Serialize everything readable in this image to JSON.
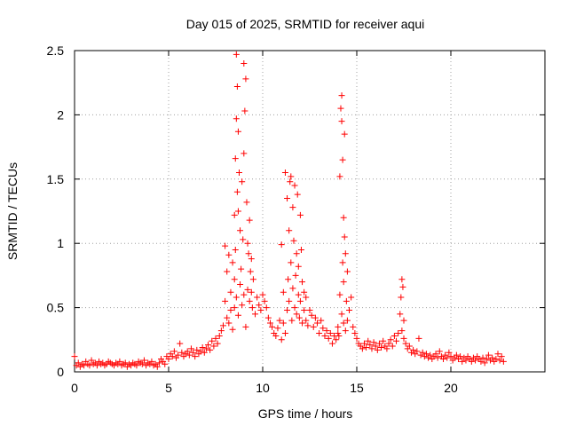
{
  "chart_data": {
    "type": "scatter",
    "title": "Day 015 of 2025, SRMTID for receiver aqui",
    "xlabel": "GPS time / hours",
    "ylabel": "SRMTID / TECUs",
    "xlim": [
      0,
      25
    ],
    "ylim": [
      0,
      2.5
    ],
    "xticks": [
      0,
      5,
      10,
      15,
      20
    ],
    "xtick_labels": [
      "0",
      "5",
      "10",
      "15",
      "20"
    ],
    "yticks": [
      0,
      0.5,
      1,
      1.5,
      2,
      2.5
    ],
    "ytick_labels": [
      "0",
      "0.5",
      "1",
      "1.5",
      "2",
      "2.5"
    ],
    "grid": true,
    "marker": "plus",
    "series": [
      {
        "name": "SRMTID",
        "color": "#ff0000",
        "x": [
          0.0,
          0.1,
          0.2,
          0.3,
          0.4,
          0.5,
          0.6,
          0.7,
          0.8,
          0.9,
          1.0,
          1.1,
          1.2,
          1.3,
          1.4,
          1.5,
          1.6,
          1.7,
          1.8,
          1.9,
          2.0,
          2.1,
          2.2,
          2.3,
          2.4,
          2.5,
          2.6,
          2.7,
          2.8,
          2.9,
          3.0,
          3.1,
          3.2,
          3.3,
          3.4,
          3.5,
          3.6,
          3.7,
          3.8,
          3.9,
          4.0,
          4.1,
          4.2,
          4.3,
          4.4,
          4.5,
          4.6,
          4.7,
          4.8,
          4.9,
          5.0,
          5.1,
          5.2,
          5.3,
          5.4,
          5.5,
          5.6,
          5.7,
          5.8,
          5.9,
          6.0,
          6.1,
          6.2,
          6.3,
          6.4,
          6.5,
          6.6,
          6.7,
          6.8,
          6.9,
          7.0,
          7.1,
          7.2,
          7.3,
          7.4,
          7.5,
          7.6,
          7.7,
          7.8,
          7.9,
          8.0,
          8.0,
          8.1,
          8.1,
          8.2,
          8.2,
          8.3,
          8.3,
          8.4,
          8.4,
          8.5,
          8.5,
          8.5,
          8.55,
          8.55,
          8.6,
          8.6,
          8.6,
          8.65,
          8.65,
          8.7,
          8.7,
          8.7,
          8.75,
          8.8,
          8.8,
          8.85,
          8.9,
          8.9,
          8.95,
          9.0,
          9.0,
          9.0,
          9.05,
          9.1,
          9.1,
          9.15,
          9.2,
          9.2,
          9.25,
          9.3,
          9.3,
          9.35,
          9.4,
          9.4,
          9.45,
          9.5,
          9.6,
          9.7,
          9.8,
          9.9,
          10.0,
          10.1,
          10.2,
          10.3,
          10.4,
          10.5,
          10.6,
          10.7,
          10.8,
          10.9,
          11.0,
          11.0,
          11.1,
          11.1,
          11.2,
          11.2,
          11.3,
          11.3,
          11.35,
          11.4,
          11.4,
          11.45,
          11.5,
          11.5,
          11.55,
          11.6,
          11.6,
          11.65,
          11.7,
          11.7,
          11.75,
          11.8,
          11.8,
          11.85,
          11.9,
          11.9,
          11.95,
          12.0,
          12.0,
          12.05,
          12.1,
          12.1,
          12.2,
          12.2,
          12.3,
          12.3,
          12.4,
          12.5,
          12.6,
          12.7,
          12.8,
          12.9,
          13.0,
          13.1,
          13.2,
          13.3,
          13.4,
          13.5,
          13.6,
          13.7,
          13.8,
          13.9,
          14.0,
          14.0,
          14.05,
          14.1,
          14.1,
          14.15,
          14.2,
          14.2,
          14.2,
          14.25,
          14.25,
          14.3,
          14.3,
          14.3,
          14.35,
          14.35,
          14.4,
          14.4,
          14.45,
          14.5,
          14.5,
          14.6,
          14.7,
          14.8,
          14.9,
          15.0,
          15.1,
          15.2,
          15.3,
          15.4,
          15.5,
          15.6,
          15.7,
          15.8,
          15.9,
          16.0,
          16.1,
          16.2,
          16.3,
          16.4,
          16.5,
          16.6,
          16.7,
          16.8,
          16.9,
          17.0,
          17.1,
          17.2,
          17.3,
          17.35,
          17.4,
          17.4,
          17.45,
          17.5,
          17.5,
          17.6,
          17.7,
          17.8,
          17.9,
          18.0,
          18.1,
          18.2,
          18.3,
          18.4,
          18.5,
          18.6,
          18.7,
          18.8,
          18.9,
          19.0,
          19.1,
          19.2,
          19.3,
          19.4,
          19.5,
          19.6,
          19.7,
          19.8,
          19.9,
          20.0,
          20.1,
          20.2,
          20.3,
          20.4,
          20.5,
          20.6,
          20.7,
          20.8,
          20.9,
          21.0,
          21.1,
          21.2,
          21.3,
          21.4,
          21.5,
          21.6,
          21.7,
          21.8,
          21.9,
          22.0,
          22.1,
          22.2,
          22.3,
          22.4,
          22.5,
          22.6,
          22.7,
          22.8
        ],
        "y": [
          0.12,
          0.05,
          0.07,
          0.04,
          0.06,
          0.05,
          0.08,
          0.06,
          0.05,
          0.09,
          0.06,
          0.07,
          0.05,
          0.08,
          0.06,
          0.07,
          0.05,
          0.06,
          0.08,
          0.07,
          0.06,
          0.05,
          0.07,
          0.06,
          0.08,
          0.05,
          0.06,
          0.07,
          0.04,
          0.06,
          0.05,
          0.07,
          0.06,
          0.05,
          0.08,
          0.07,
          0.06,
          0.09,
          0.05,
          0.07,
          0.06,
          0.08,
          0.05,
          0.06,
          0.04,
          0.07,
          0.1,
          0.08,
          0.06,
          0.12,
          0.1,
          0.14,
          0.12,
          0.16,
          0.11,
          0.13,
          0.22,
          0.15,
          0.12,
          0.14,
          0.16,
          0.13,
          0.18,
          0.15,
          0.12,
          0.17,
          0.14,
          0.16,
          0.19,
          0.15,
          0.18,
          0.21,
          0.17,
          0.24,
          0.2,
          0.26,
          0.22,
          0.28,
          0.32,
          0.36,
          0.98,
          0.55,
          0.78,
          0.42,
          0.91,
          0.38,
          0.62,
          0.48,
          0.85,
          0.33,
          1.22,
          0.72,
          0.5,
          1.66,
          0.95,
          2.47,
          1.97,
          0.58,
          2.22,
          1.4,
          1.87,
          1.25,
          0.44,
          1.55,
          1.1,
          0.68,
          0.8,
          1.48,
          0.52,
          1.03,
          2.4,
          1.7,
          0.6,
          2.03,
          2.28,
          0.35,
          1.32,
          1.0,
          0.64,
          0.92,
          1.18,
          0.55,
          0.78,
          0.62,
          0.88,
          0.5,
          0.72,
          0.45,
          0.58,
          0.52,
          0.48,
          0.6,
          0.55,
          0.5,
          0.42,
          0.38,
          0.35,
          0.3,
          0.28,
          0.34,
          0.4,
          0.25,
          0.99,
          0.38,
          0.62,
          0.3,
          1.55,
          0.48,
          1.35,
          0.72,
          1.1,
          0.55,
          1.48,
          0.85,
          1.52,
          0.4,
          1.28,
          0.65,
          1.02,
          0.5,
          1.45,
          0.75,
          0.92,
          0.45,
          1.38,
          0.6,
          0.82,
          0.42,
          1.22,
          0.55,
          0.95,
          0.38,
          0.7,
          0.48,
          0.62,
          0.4,
          0.58,
          0.36,
          0.48,
          0.44,
          0.35,
          0.42,
          0.38,
          0.3,
          0.4,
          0.34,
          0.28,
          0.32,
          0.26,
          0.3,
          0.22,
          0.28,
          0.25,
          0.3,
          0.35,
          0.28,
          1.52,
          0.6,
          2.05,
          1.95,
          0.45,
          2.15,
          0.85,
          1.65,
          0.38,
          1.2,
          0.7,
          1.05,
          1.85,
          0.32,
          0.92,
          0.55,
          0.78,
          0.4,
          0.48,
          0.58,
          0.35,
          0.3,
          0.26,
          0.22,
          0.2,
          0.18,
          0.22,
          0.19,
          0.24,
          0.21,
          0.18,
          0.23,
          0.2,
          0.17,
          0.22,
          0.19,
          0.24,
          0.2,
          0.18,
          0.22,
          0.25,
          0.2,
          0.28,
          0.24,
          0.3,
          0.45,
          0.58,
          0.72,
          0.32,
          0.66,
          0.4,
          0.26,
          0.22,
          0.18,
          0.2,
          0.15,
          0.17,
          0.14,
          0.16,
          0.26,
          0.13,
          0.15,
          0.12,
          0.14,
          0.11,
          0.13,
          0.1,
          0.12,
          0.14,
          0.11,
          0.16,
          0.12,
          0.1,
          0.13,
          0.11,
          0.15,
          0.12,
          0.09,
          0.11,
          0.13,
          0.1,
          0.12,
          0.08,
          0.11,
          0.09,
          0.12,
          0.1,
          0.08,
          0.11,
          0.09,
          0.12,
          0.1,
          0.08,
          0.11,
          0.07,
          0.1,
          0.13,
          0.09,
          0.11,
          0.08,
          0.1,
          0.14,
          0.09,
          0.12,
          0.08
        ]
      }
    ]
  }
}
